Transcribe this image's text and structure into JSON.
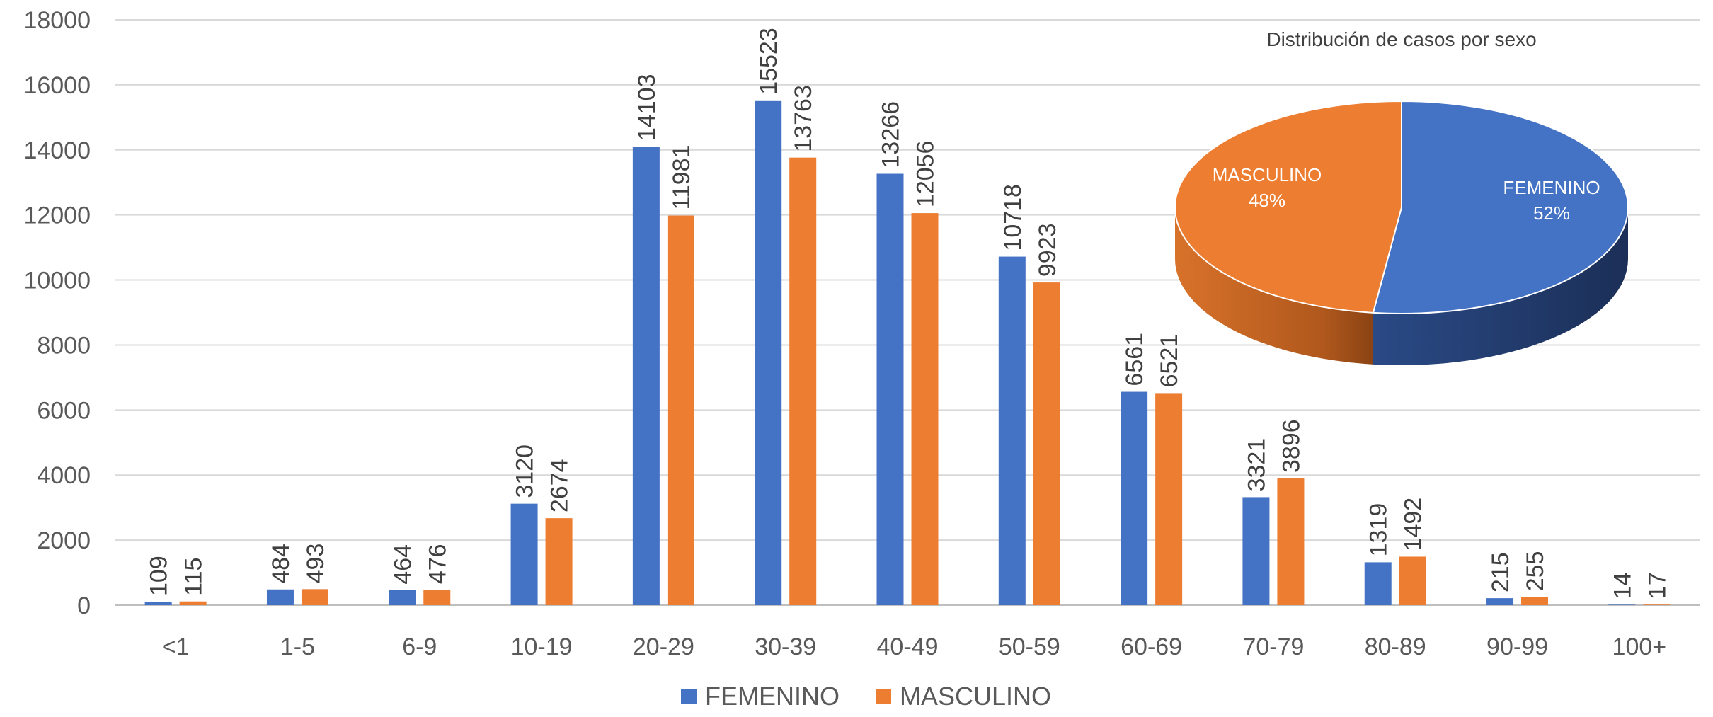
{
  "chart_data": [
    {
      "type": "bar",
      "title": "",
      "xlabel": "",
      "ylabel": "",
      "ylim": [
        0,
        18000
      ],
      "yticks": [
        0,
        2000,
        4000,
        6000,
        8000,
        10000,
        12000,
        14000,
        16000,
        18000
      ],
      "grid": true,
      "legend_position": "bottom",
      "categories": [
        "<1",
        "1-5",
        "6-9",
        "10-19",
        "20-29",
        "30-39",
        "40-49",
        "50-59",
        "60-69",
        "70-79",
        "80-89",
        "90-99",
        "100+"
      ],
      "series": [
        {
          "name": "FEMENINO",
          "color": "#4472C4",
          "values": [
            109,
            484,
            464,
            3120,
            14103,
            15523,
            13266,
            10718,
            6561,
            3321,
            1319,
            215,
            14
          ]
        },
        {
          "name": "MASCULINO",
          "color": "#ED7D31",
          "values": [
            115,
            493,
            476,
            2674,
            11981,
            13763,
            12056,
            9923,
            6521,
            3896,
            1492,
            255,
            17
          ]
        }
      ]
    },
    {
      "type": "pie",
      "title": "Distribución de casos por sexo",
      "style": "3d",
      "slices": [
        {
          "label": "FEMENINO",
          "value": 52,
          "display": "52%",
          "color": "#4472C4"
        },
        {
          "label": "MASCULINO",
          "value": 48,
          "display": "48%",
          "color": "#ED7D31"
        }
      ]
    }
  ]
}
